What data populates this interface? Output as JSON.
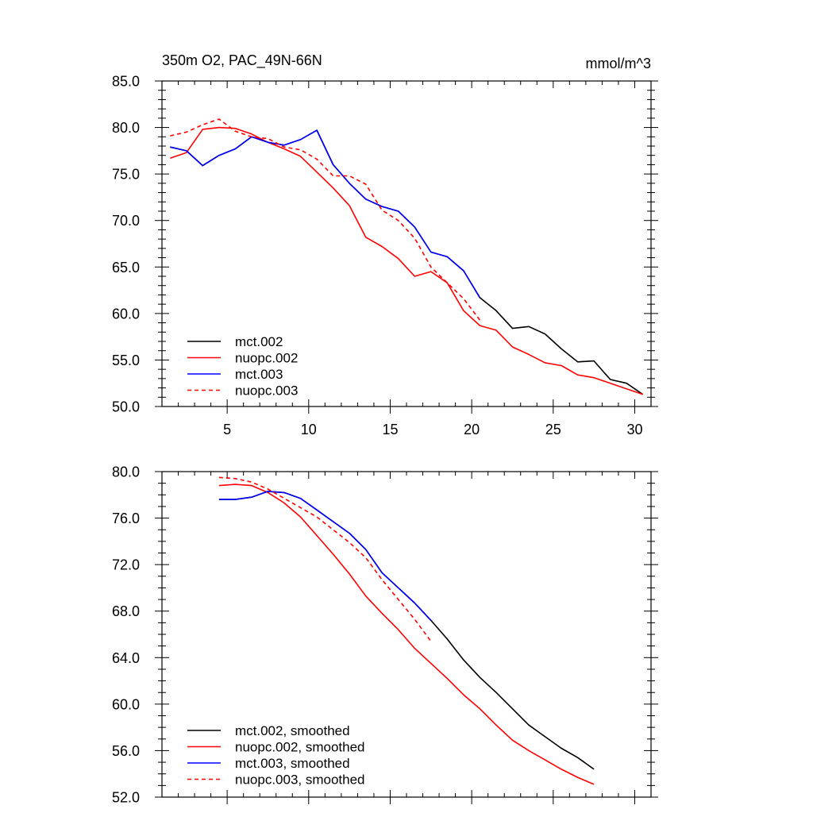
{
  "chart_data": [
    {
      "type": "line",
      "title": "350m O2, PAC_49N-66N",
      "units_label": "mmol/m^3",
      "xlim": [
        1,
        31
      ],
      "ylim": [
        50,
        85
      ],
      "x_ticks": [
        5,
        10,
        15,
        20,
        25,
        30
      ],
      "y_ticks": [
        50,
        55,
        60,
        65,
        70,
        75,
        80,
        85
      ],
      "y_tick_labels": [
        "50.0",
        "55.0",
        "60.0",
        "65.0",
        "70.0",
        "75.0",
        "80.0",
        "85.0"
      ],
      "grid": false,
      "legend_position": "bottom-left",
      "series": [
        {
          "name": "mct.002",
          "color": "#000000",
          "dash": "solid",
          "x": [
            1.5,
            2.5,
            3.5,
            4.5,
            5.5,
            6.5,
            7.5,
            8.5,
            9.5,
            10.5,
            11.5,
            12.5,
            13.5,
            14.5,
            15.5,
            16.5,
            17.5,
            18.5,
            19.5,
            20.5,
            21.5,
            22.5,
            23.5,
            24.5,
            25.5,
            26.5,
            27.5,
            28.5,
            29.5,
            30.5
          ],
          "values": [
            77.9,
            77.5,
            75.9,
            77.0,
            77.7,
            79.0,
            78.4,
            78.1,
            78.7,
            79.7,
            76.0,
            74.0,
            72.3,
            71.5,
            71.0,
            69.3,
            66.6,
            66.1,
            64.6,
            61.7,
            60.3,
            58.4,
            58.6,
            57.8,
            56.2,
            54.8,
            54.9,
            52.9,
            52.5,
            51.3
          ]
        },
        {
          "name": "nuopc.002",
          "color": "#ff0000",
          "dash": "solid",
          "x": [
            1.5,
            2.5,
            3.5,
            4.5,
            5.5,
            6.5,
            7.5,
            8.5,
            9.5,
            10.5,
            11.5,
            12.5,
            13.5,
            14.5,
            15.5,
            16.5,
            17.5,
            18.5,
            19.5,
            20.5,
            21.5,
            22.5,
            23.5,
            24.5,
            25.5,
            26.5,
            27.5,
            28.5,
            29.5,
            30.5
          ],
          "values": [
            76.7,
            77.3,
            79.8,
            80.0,
            79.9,
            79.3,
            78.4,
            77.7,
            76.9,
            75.2,
            73.5,
            71.6,
            68.2,
            67.2,
            65.9,
            64.0,
            64.5,
            63.3,
            60.3,
            58.7,
            58.2,
            56.4,
            55.6,
            54.7,
            54.4,
            53.4,
            53.1,
            52.5,
            51.9,
            51.3
          ]
        },
        {
          "name": "mct.003",
          "color": "#0000ff",
          "dash": "solid",
          "x": [
            1.5,
            2.5,
            3.5,
            4.5,
            5.5,
            6.5,
            7.5,
            8.5,
            9.5,
            10.5,
            11.5,
            12.5,
            13.5,
            14.5,
            15.5,
            16.5,
            17.5,
            18.5,
            19.5,
            20.5
          ],
          "values": [
            77.9,
            77.5,
            75.9,
            77.0,
            77.7,
            79.0,
            78.4,
            78.1,
            78.7,
            79.7,
            76.0,
            74.0,
            72.3,
            71.5,
            71.0,
            69.3,
            66.6,
            66.1,
            64.6,
            61.7
          ]
        },
        {
          "name": "nuopc.003",
          "color": "#ff0000",
          "dash": "dashed",
          "x": [
            1.5,
            2.5,
            3.5,
            4.5,
            5.5,
            6.5,
            7.5,
            8.5,
            9.5,
            10.5,
            11.5,
            12.5,
            13.5,
            14.5,
            15.5,
            16.5,
            17.5,
            18.5,
            19.5,
            20.5
          ],
          "values": [
            79.1,
            79.5,
            80.3,
            80.9,
            79.6,
            79.0,
            78.8,
            77.9,
            77.6,
            76.6,
            74.8,
            74.8,
            73.9,
            71.1,
            70.0,
            68.1,
            65.0,
            63.3,
            61.6,
            59.3
          ]
        }
      ]
    },
    {
      "type": "line",
      "title": "",
      "xlim": [
        1,
        31
      ],
      "ylim": [
        52,
        80
      ],
      "x_ticks": [
        5,
        10,
        15,
        20,
        25,
        30
      ],
      "y_ticks": [
        52,
        56,
        60,
        64,
        68,
        72,
        76,
        80
      ],
      "y_tick_labels": [
        "52.0",
        "56.0",
        "60.0",
        "64.0",
        "68.0",
        "72.0",
        "76.0",
        "80.0"
      ],
      "grid": false,
      "legend_position": "bottom-left",
      "series": [
        {
          "name": "mct.002, smoothed",
          "color": "#000000",
          "dash": "solid",
          "x": [
            4.5,
            5.5,
            6.5,
            7.5,
            8.5,
            9.5,
            10.5,
            11.5,
            12.5,
            13.5,
            14.5,
            15.5,
            16.5,
            17.5,
            18.5,
            19.5,
            20.5,
            21.5,
            22.5,
            23.5,
            24.5,
            25.5,
            26.5,
            27.5
          ],
          "values": [
            77.6,
            77.6,
            77.8,
            78.3,
            78.2,
            77.7,
            76.7,
            75.7,
            74.7,
            73.3,
            71.3,
            70.0,
            68.7,
            67.2,
            65.6,
            63.8,
            62.3,
            61.0,
            59.6,
            58.2,
            57.2,
            56.2,
            55.4,
            54.4
          ]
        },
        {
          "name": "nuopc.002, smoothed",
          "color": "#ff0000",
          "dash": "solid",
          "x": [
            4.5,
            5.5,
            6.5,
            7.5,
            8.5,
            9.5,
            10.5,
            11.5,
            12.5,
            13.5,
            14.5,
            15.5,
            16.5,
            17.5,
            18.5,
            19.5,
            20.5,
            21.5,
            22.5,
            23.5,
            24.5,
            25.5,
            26.5,
            27.5
          ],
          "values": [
            78.8,
            78.9,
            78.8,
            78.2,
            77.3,
            76.1,
            74.5,
            72.9,
            71.2,
            69.3,
            67.8,
            66.4,
            64.8,
            63.5,
            62.2,
            60.8,
            59.6,
            58.2,
            56.9,
            56.0,
            55.2,
            54.4,
            53.7,
            53.1
          ]
        },
        {
          "name": "mct.003, smoothed",
          "color": "#0000ff",
          "dash": "solid",
          "x": [
            4.5,
            5.5,
            6.5,
            7.5,
            8.5,
            9.5,
            10.5,
            11.5,
            12.5,
            13.5,
            14.5,
            15.5,
            16.5,
            17.5
          ],
          "values": [
            77.6,
            77.6,
            77.8,
            78.3,
            78.2,
            77.7,
            76.7,
            75.7,
            74.7,
            73.3,
            71.3,
            70.0,
            68.7,
            67.2
          ]
        },
        {
          "name": "nuopc.003, smoothed",
          "color": "#ff0000",
          "dash": "dashed",
          "x": [
            4.5,
            5.5,
            6.5,
            7.5,
            8.5,
            9.5,
            10.5,
            11.5,
            12.5,
            13.5,
            14.5,
            15.5,
            16.5,
            17.5
          ],
          "values": [
            79.5,
            79.4,
            79.1,
            78.5,
            77.7,
            76.9,
            76.1,
            75.0,
            73.9,
            72.6,
            70.7,
            69.0,
            67.3,
            65.4
          ]
        }
      ]
    }
  ]
}
